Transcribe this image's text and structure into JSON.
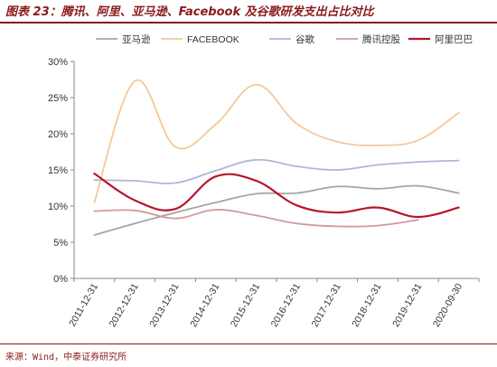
{
  "header": {
    "title": "图表 23：腾讯、阿里、亚马逊、Facebook 及谷歌研发支出占比对比"
  },
  "footer": {
    "source": "来源：Wind，中泰证券研究所"
  },
  "chart_data": {
    "type": "line",
    "title": "",
    "xlabel": "",
    "ylabel": "",
    "categories": [
      "2011-12-31",
      "2012-12-31",
      "2013-12-31",
      "2014-12-31",
      "2015-12-31",
      "2016-12-31",
      "2017-12-31",
      "2018-12-31",
      "2019-12-31",
      "2020-09-30"
    ],
    "y_ticks": [
      "30%",
      "25%",
      "20%",
      "15%",
      "10%",
      "5%",
      "0%"
    ],
    "ylim": [
      0,
      30
    ],
    "grid": false,
    "legend_position": "top",
    "series": [
      {
        "name": "亚马逊",
        "color": "#a6a6a6",
        "width": 1.8,
        "values": [
          6.0,
          7.6,
          9.1,
          10.5,
          11.7,
          11.8,
          12.7,
          12.4,
          12.8,
          11.8
        ]
      },
      {
        "name": "FACEBOOK",
        "color": "#f5c89a",
        "width": 1.8,
        "values": [
          10.5,
          27.3,
          18.2,
          21.3,
          26.8,
          21.4,
          18.9,
          18.4,
          19.1,
          22.9
        ]
      },
      {
        "name": "谷歌",
        "color": "#b7b3d6",
        "width": 1.8,
        "values": [
          13.6,
          13.5,
          13.2,
          14.9,
          16.4,
          15.5,
          15.0,
          15.7,
          16.1,
          16.3
        ]
      },
      {
        "name": "腾讯控股",
        "color": "#d4999a",
        "width": 1.8,
        "values": [
          9.3,
          9.4,
          8.3,
          9.5,
          8.7,
          7.6,
          7.2,
          7.3,
          8.1,
          null
        ]
      },
      {
        "name": "阿里巴巴",
        "color": "#b8142c",
        "width": 2.2,
        "values": [
          14.5,
          10.8,
          9.6,
          14.1,
          13.5,
          10.1,
          9.1,
          9.8,
          8.5,
          9.8
        ]
      }
    ]
  }
}
